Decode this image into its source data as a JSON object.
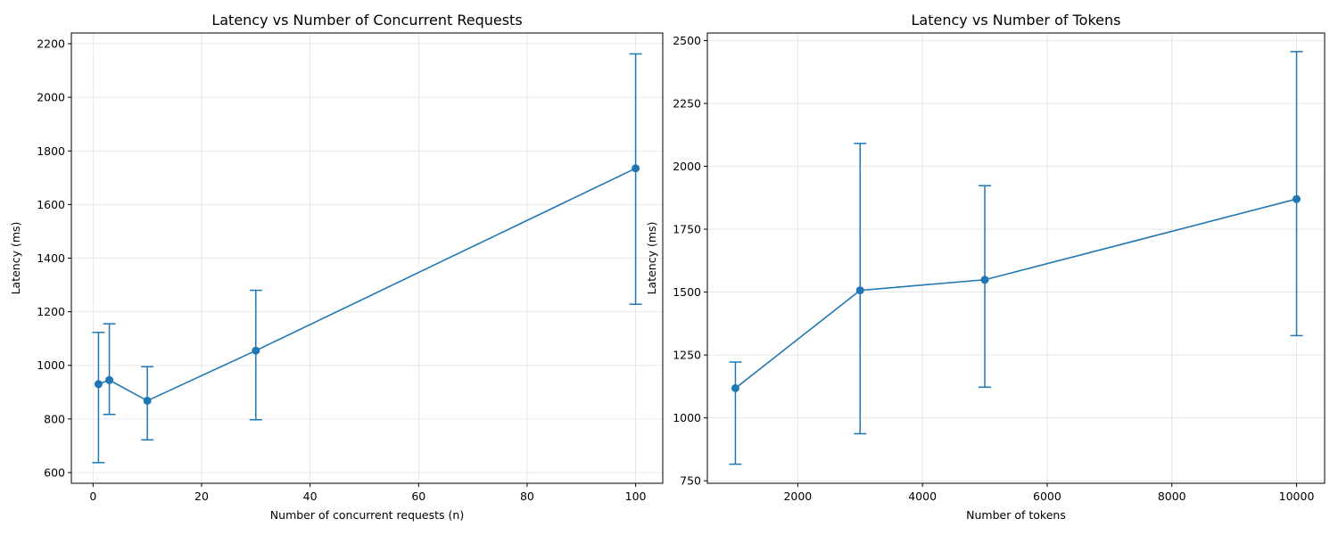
{
  "chart_data": [
    {
      "type": "line",
      "title": "Latency vs Number of Concurrent Requests",
      "xlabel": "Number of concurrent requests (n)",
      "ylabel": "Latency (ms)",
      "xlim": [
        -4,
        105
      ],
      "ylim": [
        560,
        2240
      ],
      "xticks": [
        0,
        20,
        40,
        60,
        80,
        100
      ],
      "yticks": [
        600,
        800,
        1000,
        1200,
        1400,
        1600,
        1800,
        2000,
        2200
      ],
      "grid": true,
      "color": "#1f77b4",
      "series": [
        {
          "x": [
            1,
            3,
            10,
            30,
            100
          ],
          "y": [
            930,
            945,
            868,
            1055,
            1735
          ],
          "err_low": [
            637,
            817,
            722,
            797,
            1228
          ],
          "err_high": [
            1123,
            1155,
            995,
            1280,
            2162
          ]
        }
      ]
    },
    {
      "type": "line",
      "title": "Latency vs Number of Tokens",
      "xlabel": "Number of tokens",
      "ylabel": "Latency (ms)",
      "xlim": [
        550,
        10450
      ],
      "ylim": [
        740,
        2530
      ],
      "xticks": [
        2000,
        4000,
        6000,
        8000,
        10000
      ],
      "yticks": [
        750,
        1000,
        1250,
        1500,
        1750,
        2000,
        2250,
        2500
      ],
      "grid": true,
      "color": "#1f77b4",
      "series": [
        {
          "x": [
            1000,
            3000,
            5000,
            10000
          ],
          "y": [
            1118,
            1507,
            1549,
            1870
          ],
          "err_low": [
            816,
            937,
            1122,
            1327
          ],
          "err_high": [
            1222,
            2091,
            1923,
            2456
          ]
        }
      ]
    }
  ]
}
